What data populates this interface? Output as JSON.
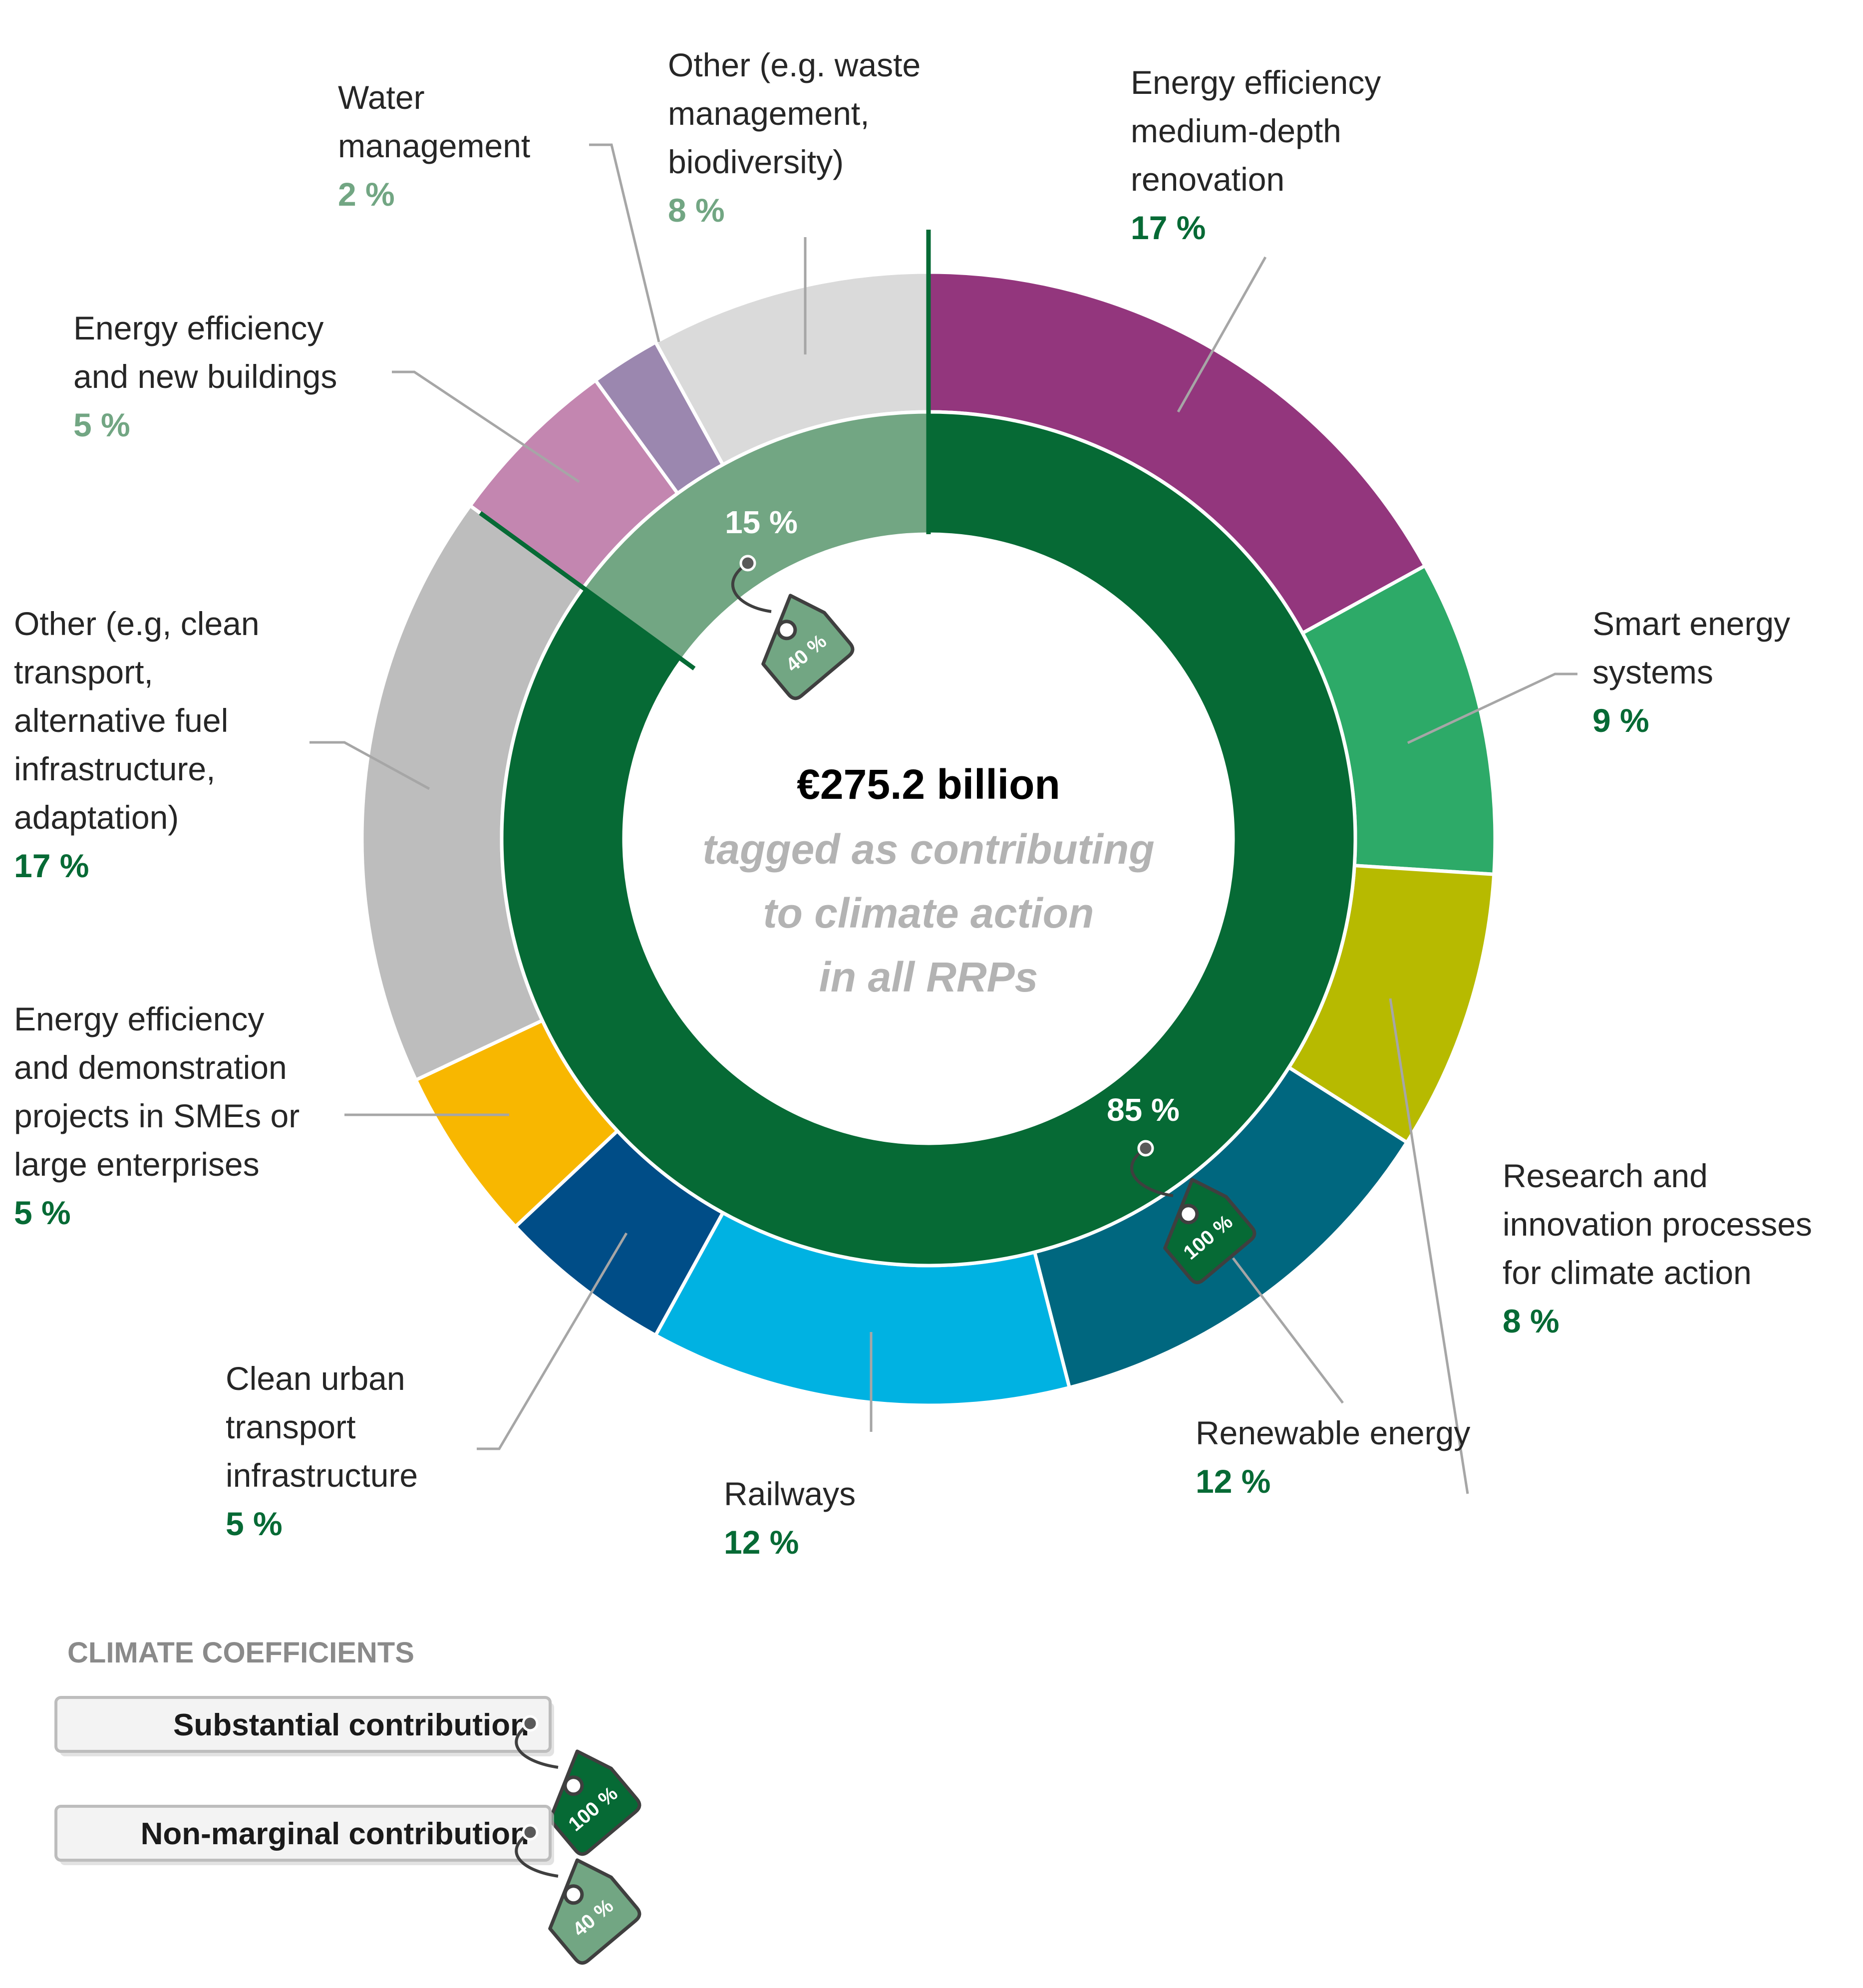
{
  "chart_data": {
    "type": "donut",
    "center": {
      "amount": "€275.2 billion",
      "subtitle_lines": [
        "tagged as contributing",
        "to climate action",
        "in all RRPs"
      ]
    },
    "outer_series": [
      {
        "name": "Energy efficiency medium-depth renovation",
        "label_lines": [
          "Energy efficiency",
          "medium-depth",
          "renovation"
        ],
        "value": 17,
        "value_label": "17 %",
        "color": "#93367D",
        "group": "substantial"
      },
      {
        "name": "Smart energy systems",
        "label_lines": [
          "Smart energy",
          "systems"
        ],
        "value": 9,
        "value_label": "9 %",
        "color": "#2DAA68",
        "group": "substantial"
      },
      {
        "name": "Research and innovation processes for climate action",
        "label_lines": [
          "Research and",
          "innovation processes",
          "for climate action"
        ],
        "value": 8,
        "value_label": "8 %",
        "color": "#B7BA00",
        "group": "substantial"
      },
      {
        "name": "Renewable energy",
        "label_lines": [
          "Renewable energy"
        ],
        "value": 12,
        "value_label": "12 %",
        "color": "#00677F",
        "group": "substantial"
      },
      {
        "name": "Railways",
        "label_lines": [
          "Railways"
        ],
        "value": 12,
        "value_label": "12 %",
        "color": "#00B2E2",
        "group": "substantial"
      },
      {
        "name": "Clean urban transport infrastructure",
        "label_lines": [
          "Clean urban",
          "transport",
          "infrastructure"
        ],
        "value": 5,
        "value_label": "5 %",
        "color": "#004D87",
        "group": "substantial"
      },
      {
        "name": "Energy efficiency and demonstration projects in SMEs or large enterprises",
        "label_lines": [
          "Energy efficiency",
          "and demonstration",
          "projects in SMEs or",
          "large enterprises"
        ],
        "value": 5,
        "value_label": "5 %",
        "color": "#F8B700",
        "group": "substantial"
      },
      {
        "name": "Other (e.g, clean transport, alternative fuel infrastructure, adaptation)",
        "label_lines": [
          "Other (e.g, clean",
          "transport,",
          "alternative fuel",
          "infrastructure,",
          "adaptation)"
        ],
        "value": 17,
        "value_label": "17 %",
        "color": "#BDBDBD",
        "group": "substantial"
      },
      {
        "name": "Energy efficiency and new buildings",
        "label_lines": [
          "Energy efficiency",
          "and new buildings"
        ],
        "value": 5,
        "value_label": "5 %",
        "color": "#C386B0",
        "group": "non-marginal"
      },
      {
        "name": "Water management",
        "label_lines": [
          "Water",
          "management"
        ],
        "value": 2,
        "value_label": "2 %",
        "color": "#9B87AF",
        "group": "non-marginal"
      },
      {
        "name": "Other (e.g. waste management, biodiversity)",
        "label_lines": [
          "Other (e.g. waste",
          "management,",
          "biodiversity)"
        ],
        "value": 8,
        "value_label": "8 %",
        "color": "#DADADA",
        "group": "non-marginal"
      }
    ],
    "inner_series": [
      {
        "name": "Substantial contribution",
        "value": 85,
        "value_label": "85 %",
        "coefficient": "100 %",
        "color": "#066A35"
      },
      {
        "name": "Non-marginal contribution",
        "value": 15,
        "value_label": "15 %",
        "coefficient": "40 %",
        "color": "#72A683"
      }
    ],
    "label_colors": {
      "substantial": "#066A35",
      "non-marginal": "#72A683"
    },
    "legend": {
      "title": "CLIMATE COEFFICIENTS",
      "items": [
        {
          "label": "Substantial contribution",
          "tag": "100 %",
          "color": "#066A35"
        },
        {
          "label": "Non-marginal contribution",
          "tag": "40 %",
          "color": "#72A683"
        }
      ]
    }
  }
}
